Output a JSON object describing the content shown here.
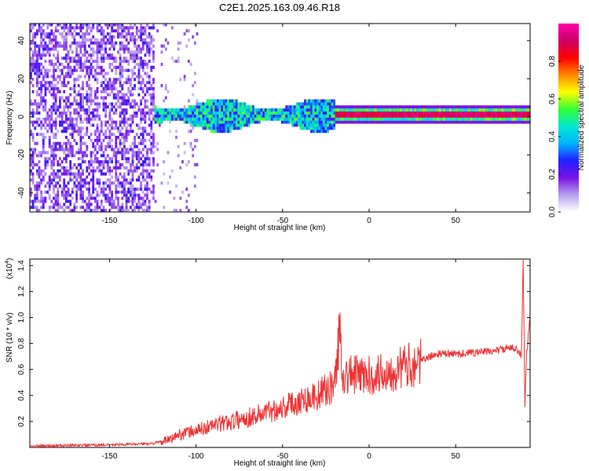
{
  "title": "C2E1.2025.163.09.46.R18",
  "colors": {
    "snr_line": "#ee3333",
    "axis": "#000000",
    "background": "#ffffff"
  },
  "chart_data": [
    {
      "type": "heatmap",
      "xlabel": "Height of straight line (km)",
      "ylabel": "Frequency (Hz)",
      "xlim": [
        -196,
        93
      ],
      "ylim": [
        -50,
        49
      ],
      "x_ticks": [
        -150,
        -100,
        -50,
        0,
        50
      ],
      "y_ticks": [
        -40,
        -20,
        0,
        20,
        40
      ],
      "colorbar": {
        "label": "Normalized spectral amplitude",
        "range": [
          0,
          1
        ],
        "ticks": [
          "0.0",
          "0.2",
          "0.4",
          "0.6",
          "0.8"
        ],
        "colormap": [
          "#ffffff",
          "#b7a0f0",
          "#7a12e6",
          "#2020ff",
          "#00b4ff",
          "#00e8d0",
          "#33ff33",
          "#ffff00",
          "#ff8800",
          "#ff0000",
          "#cc0066",
          "#ff00aa"
        ]
      },
      "features": [
        {
          "x_range": [
            -196,
            -125
          ],
          "pattern": "scattered noise",
          "freq_range": [
            -50,
            49
          ],
          "level": 0.2
        },
        {
          "x_range": [
            -125,
            -20
          ],
          "pattern": "central band",
          "freq_range": [
            -8,
            8
          ],
          "level": 0.35
        },
        {
          "x_range": [
            -20,
            93
          ],
          "pattern": "narrow line",
          "freq_range": [
            -3,
            3
          ],
          "level": 0.9
        }
      ]
    },
    {
      "type": "line",
      "xlabel": "Height of straight line (km)",
      "ylabel": "SNR (10 * v/v)",
      "y_multiplier": "(x10",
      "y_multiplier_exp": "4",
      "xlim": [
        -196,
        93
      ],
      "ylim": [
        0,
        1.45
      ],
      "x_ticks": [
        -150,
        -100,
        -50,
        0,
        50
      ],
      "y_ticks": [
        "0.2",
        "0.4",
        "0.6",
        "0.8",
        "1.0",
        "1.2",
        "1.4"
      ],
      "series": [
        {
          "x": [
            -196,
            -150,
            -125,
            -115,
            -110,
            -100,
            -90,
            -80,
            -70,
            -60,
            -50,
            -40,
            -30,
            -20,
            -17,
            -15,
            -10,
            0,
            10,
            20,
            30,
            35,
            40,
            50,
            60,
            70,
            80,
            85,
            88,
            89,
            90,
            91,
            93
          ],
          "y": [
            0.01,
            0.02,
            0.03,
            0.06,
            0.1,
            0.13,
            0.17,
            0.2,
            0.23,
            0.27,
            0.31,
            0.36,
            0.4,
            0.48,
            0.9,
            0.55,
            0.56,
            0.55,
            0.58,
            0.62,
            0.66,
            0.7,
            0.72,
            0.72,
            0.73,
            0.74,
            0.76,
            0.77,
            0.7,
            1.45,
            0.32,
            0.72,
            1.0
          ]
        }
      ]
    }
  ]
}
